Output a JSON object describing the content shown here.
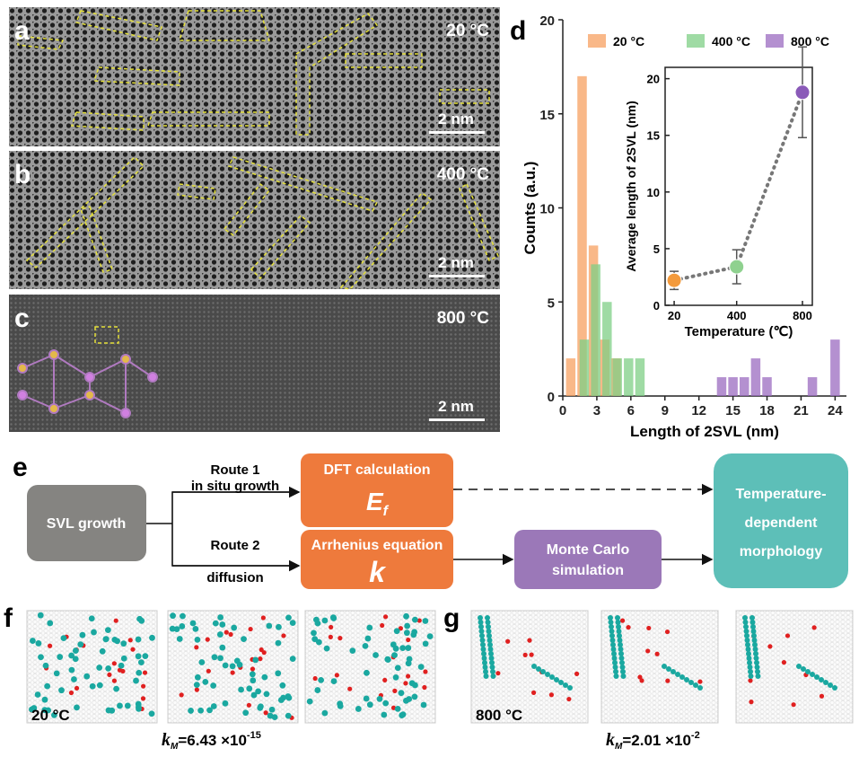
{
  "panels": [
    {
      "label": "a",
      "temperature": "20 °C",
      "scale": "2 nm"
    },
    {
      "label": "b",
      "temperature": "400 °C",
      "scale": "2 nm"
    },
    {
      "label": "c",
      "temperature": "800 °C",
      "scale": "2 nm"
    }
  ],
  "chart_data": [
    {
      "type": "bar",
      "label": "d",
      "xlabel": "Length of 2SVL (nm)",
      "ylabel": "Counts (a.u.)",
      "xlim": [
        0,
        25
      ],
      "xticks": [
        0,
        3,
        6,
        9,
        12,
        15,
        18,
        21,
        24
      ],
      "ylim": [
        0,
        20
      ],
      "yticks": [
        0,
        5,
        10,
        15,
        20
      ],
      "series": [
        {
          "name": "20 °C",
          "color": "#f7a060",
          "x": [
            0.7,
            1.7,
            2.7,
            3.7,
            4.7
          ],
          "values": [
            2,
            17,
            8,
            3,
            2
          ]
        },
        {
          "name": "400 °C",
          "color": "#7fcf86",
          "x": [
            1.9,
            2.9,
            3.9,
            4.8,
            5.8,
            6.8
          ],
          "values": [
            3,
            7,
            5,
            2,
            2,
            2
          ]
        },
        {
          "name": "800 °C",
          "color": "#9b6bc0",
          "x": [
            14,
            15,
            16,
            17,
            18,
            22,
            24
          ],
          "values": [
            1,
            1,
            1,
            2,
            1,
            1,
            3
          ]
        }
      ]
    },
    {
      "type": "line",
      "xlabel": "Temperature (℃)",
      "ylabel": "Average length of 2SVL (nm)",
      "xlim": [
        -35,
        860
      ],
      "xticks": [
        20,
        400,
        800
      ],
      "ylim": [
        0,
        21
      ],
      "yticks": [
        0,
        5,
        10,
        15,
        20
      ],
      "x": [
        20,
        400,
        800
      ],
      "values": [
        2.2,
        3.4,
        18.8
      ],
      "errors": [
        0.8,
        1.5,
        4
      ],
      "colors": [
        "#f39a3c",
        "#8fd18f",
        "#8a5ab8"
      ],
      "line_color": "#777777"
    }
  ],
  "flow": {
    "label": "e",
    "start": "SVL growth",
    "route1": "Route 1",
    "route1_sub": "in situ growth",
    "route2": "Route 2",
    "route2_sub": "diffusion",
    "dft": "DFT calculation",
    "dft_symbol": {
      "main": "E",
      "sub": "f"
    },
    "arrhenius": "Arrhenius equation",
    "arrhenius_symbol": "k",
    "monte_carlo": [
      "Monte Carlo",
      "simulation"
    ],
    "result": [
      "Temperature-",
      "dependent",
      "morphology"
    ]
  },
  "simulations": [
    {
      "label": "f",
      "temperature": "20 °C",
      "k": "k",
      "k_sub": "M",
      "k_value": "=6.43 ×10",
      "k_exp": "-15"
    },
    {
      "label": "g",
      "temperature": "800 °C",
      "k": "k",
      "k_sub": "M",
      "k_value": "=2.01 ×10",
      "k_exp": "-2"
    }
  ]
}
